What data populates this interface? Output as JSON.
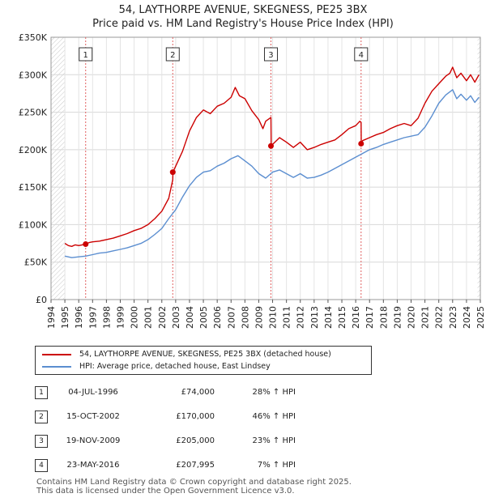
{
  "title_line1": "54, LAYTHORPE AVENUE, SKEGNESS, PE25 3BX",
  "title_line2": "Price paid vs. HM Land Registry's House Price Index (HPI)",
  "chart_data": {
    "type": "line",
    "xlim": [
      1994.0,
      2025.0
    ],
    "ylim": [
      0,
      350000
    ],
    "y_ticks": [
      0,
      50000,
      100000,
      150000,
      200000,
      250000,
      300000,
      350000
    ],
    "y_tick_labels": [
      "£0",
      "£50K",
      "£100K",
      "£150K",
      "£200K",
      "£250K",
      "£300K",
      "£350K"
    ],
    "x_ticks": [
      1994,
      1995,
      1996,
      1997,
      1998,
      1999,
      2000,
      2001,
      2002,
      2003,
      2004,
      2005,
      2006,
      2007,
      2008,
      2009,
      2010,
      2011,
      2012,
      2013,
      2014,
      2015,
      2016,
      2017,
      2018,
      2019,
      2020,
      2021,
      2022,
      2023,
      2024,
      2025
    ],
    "x_tick_labels": [
      "1994",
      "1995",
      "1996",
      "1997",
      "1998",
      "1999",
      "2000",
      "2001",
      "2002",
      "2003",
      "2004",
      "2005",
      "2006",
      "2007",
      "2008",
      "2009",
      "2010",
      "2011",
      "2012",
      "2013",
      "2014",
      "2015",
      "2016",
      "2017",
      "2018",
      "2019",
      "2020",
      "2021",
      "2022",
      "2023",
      "2024",
      "2025"
    ],
    "hatched_before": 1995.0,
    "hatched_after": 2024.8,
    "series": [
      {
        "name": "54, LAYTHORPE AVENUE, SKEGNESS, PE25 3BX (detached house)",
        "color": "#cc0000",
        "x": [
          1995.0,
          1995.25,
          1995.5,
          1995.75,
          1996.0,
          1996.25,
          1996.5,
          1996.75,
          1997.0,
          1997.5,
          1998.0,
          1998.5,
          1999.0,
          1999.5,
          2000.0,
          2000.5,
          2001.0,
          2001.5,
          2002.0,
          2002.5,
          2002.79,
          2002.8,
          2003.0,
          2003.5,
          2004.0,
          2004.5,
          2005.0,
          2005.5,
          2006.0,
          2006.5,
          2007.0,
          2007.3,
          2007.6,
          2008.0,
          2008.5,
          2009.0,
          2009.3,
          2009.5,
          2009.88,
          2009.9,
          2010.0,
          2010.5,
          2011.0,
          2011.5,
          2012.0,
          2012.5,
          2013.0,
          2013.5,
          2014.0,
          2014.5,
          2015.0,
          2015.5,
          2016.0,
          2016.3,
          2016.39,
          2016.4,
          2016.5,
          2017.0,
          2017.5,
          2018.0,
          2018.5,
          2019.0,
          2019.5,
          2020.0,
          2020.5,
          2021.0,
          2021.5,
          2022.0,
          2022.5,
          2022.8,
          2023.0,
          2023.3,
          2023.6,
          2024.0,
          2024.3,
          2024.6,
          2024.9
        ],
        "values": [
          75000,
          72000,
          71000,
          73000,
          72000,
          73000,
          74000,
          76000,
          77000,
          78000,
          80000,
          82000,
          85000,
          88000,
          92000,
          95000,
          100000,
          108000,
          118000,
          135000,
          160000,
          170000,
          178000,
          198000,
          225000,
          243000,
          253000,
          248000,
          258000,
          262000,
          270000,
          283000,
          272000,
          268000,
          252000,
          240000,
          228000,
          238000,
          243000,
          205000,
          207000,
          216000,
          210000,
          203000,
          210000,
          200000,
          203000,
          207000,
          210000,
          213000,
          220000,
          228000,
          232000,
          238000,
          236000,
          207995,
          212000,
          216000,
          220000,
          223000,
          228000,
          232000,
          235000,
          232000,
          242000,
          262000,
          278000,
          288000,
          298000,
          302000,
          310000,
          296000,
          302000,
          292000,
          300000,
          290000,
          300000
        ]
      },
      {
        "name": "HPI: Average price, detached house, East Lindsey",
        "color": "#5b8ed0",
        "x": [
          1995.0,
          1995.5,
          1996.0,
          1996.5,
          1997.0,
          1997.5,
          1998.0,
          1998.5,
          1999.0,
          1999.5,
          2000.0,
          2000.5,
          2001.0,
          2001.5,
          2002.0,
          2002.5,
          2003.0,
          2003.5,
          2004.0,
          2004.5,
          2005.0,
          2005.5,
          2006.0,
          2006.5,
          2007.0,
          2007.5,
          2008.0,
          2008.5,
          2009.0,
          2009.5,
          2010.0,
          2010.5,
          2011.0,
          2011.5,
          2012.0,
          2012.5,
          2013.0,
          2013.5,
          2014.0,
          2014.5,
          2015.0,
          2015.5,
          2016.0,
          2016.5,
          2017.0,
          2017.5,
          2018.0,
          2018.5,
          2019.0,
          2019.5,
          2020.0,
          2020.5,
          2021.0,
          2021.5,
          2022.0,
          2022.5,
          2023.0,
          2023.3,
          2023.6,
          2024.0,
          2024.3,
          2024.6,
          2024.9
        ],
        "values": [
          58000,
          56000,
          57000,
          58000,
          60000,
          62000,
          63000,
          65000,
          67000,
          69000,
          72000,
          75000,
          80000,
          87000,
          95000,
          108000,
          120000,
          137000,
          152000,
          163000,
          170000,
          172000,
          178000,
          182000,
          188000,
          192000,
          185000,
          178000,
          168000,
          162000,
          170000,
          173000,
          168000,
          163000,
          168000,
          162000,
          163000,
          166000,
          170000,
          175000,
          180000,
          185000,
          190000,
          195000,
          200000,
          203000,
          207000,
          210000,
          213000,
          216000,
          218000,
          220000,
          230000,
          245000,
          262000,
          273000,
          280000,
          268000,
          274000,
          266000,
          272000,
          263000,
          270000
        ]
      }
    ],
    "sales": [
      {
        "label": "1",
        "x": 1996.5,
        "price": 74000
      },
      {
        "label": "2",
        "x": 2002.79,
        "price": 170000
      },
      {
        "label": "3",
        "x": 2009.88,
        "price": 205000
      },
      {
        "label": "4",
        "x": 2016.39,
        "price": 207995
      }
    ]
  },
  "legend": {
    "series_1_label": "54, LAYTHORPE AVENUE, SKEGNESS, PE25 3BX (detached house)",
    "series_2_label": "HPI: Average price, detached house, East Lindsey",
    "series_1_color": "#cc0000",
    "series_2_color": "#5b8ed0"
  },
  "sales_table": [
    {
      "num": "1",
      "date": "04-JUL-1996",
      "price": "£74,000",
      "hpi": "28% ↑ HPI"
    },
    {
      "num": "2",
      "date": "15-OCT-2002",
      "price": "£170,000",
      "hpi": "46% ↑ HPI"
    },
    {
      "num": "3",
      "date": "19-NOV-2009",
      "price": "£205,000",
      "hpi": "23% ↑ HPI"
    },
    {
      "num": "4",
      "date": "23-MAY-2016",
      "price": "£207,995",
      "hpi": "7% ↑ HPI"
    }
  ],
  "footer": {
    "line1": "Contains HM Land Registry data © Crown copyright and database right 2025.",
    "line2": "This data is licensed under the Open Government Licence v3.0."
  }
}
